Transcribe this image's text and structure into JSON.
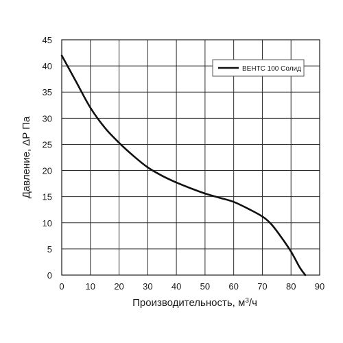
{
  "chart_data": {
    "type": "line",
    "title": "",
    "xlabel": "Производительность, м",
    "xlabel_sup": "3",
    "xlabel_unit": "/ч",
    "ylabel": "Давление, ΔP Па",
    "xlim": [
      0,
      90
    ],
    "ylim": [
      0,
      45
    ],
    "xticks": [
      0,
      10,
      20,
      30,
      40,
      50,
      60,
      70,
      80,
      90
    ],
    "yticks": [
      0,
      5,
      10,
      15,
      20,
      25,
      30,
      35,
      40,
      45
    ],
    "grid": true,
    "legend_position": "top-right",
    "series": [
      {
        "name": "ВЕНТС 100 Солид",
        "color": "#111111",
        "x": [
          0,
          5,
          10,
          15,
          20,
          25,
          30,
          35,
          40,
          45,
          50,
          55,
          60,
          65,
          70,
          73,
          76,
          80,
          83,
          85
        ],
        "y": [
          42,
          37,
          32,
          28.2,
          25.3,
          22.8,
          20.6,
          19,
          17.7,
          16.6,
          15.6,
          14.8,
          14,
          12.7,
          11.2,
          9.8,
          7.7,
          4.5,
          1.5,
          0
        ]
      }
    ]
  }
}
